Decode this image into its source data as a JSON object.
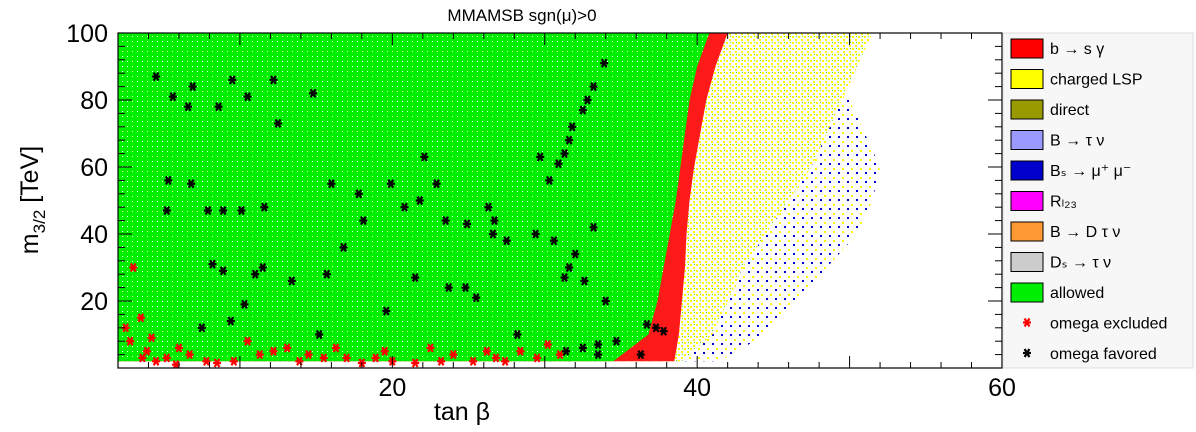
{
  "chart_data": {
    "type": "scatter",
    "title": "MMAMSB    sgn(μ)>0",
    "xlabel": "tan β",
    "ylabel_main": "m",
    "ylabel_sub": "3/2",
    "ylabel_unit": " [TeV]",
    "xlim": [
      2,
      60
    ],
    "ylim": [
      0,
      100
    ],
    "x_ticks": [
      20,
      40,
      60
    ],
    "y_ticks": [
      20,
      40,
      60,
      80,
      100
    ],
    "grid": false,
    "legend_position": "right",
    "legend": [
      {
        "key": "bsg",
        "label": "b → s γ",
        "color": "#ff0000",
        "marker": "box"
      },
      {
        "key": "charged",
        "label": "charged LSP",
        "color": "#ffff00",
        "marker": "box"
      },
      {
        "key": "direct",
        "label": "direct",
        "color": "#999900",
        "marker": "box"
      },
      {
        "key": "btn",
        "label": "B → τ ν",
        "color": "#9999ff",
        "marker": "box"
      },
      {
        "key": "bsmm",
        "label": "Bₛ → μ⁺ μ⁻",
        "color": "#0000cc",
        "marker": "box"
      },
      {
        "key": "rl23",
        "label": "Rₗ₂₃",
        "color": "#ff00ff",
        "marker": "box"
      },
      {
        "key": "bdtn",
        "label": "B → D τ ν",
        "color": "#ff9933",
        "marker": "box"
      },
      {
        "key": "dstn",
        "label": "Dₛ → τ ν",
        "color": "#cccccc",
        "marker": "box"
      },
      {
        "key": "allowed",
        "label": "allowed",
        "color": "#00ee00",
        "marker": "box"
      },
      {
        "key": "omega_ex",
        "label": "omega excluded",
        "color": "#ff0000",
        "marker": "star"
      },
      {
        "key": "omega_fav",
        "label": "omega favored",
        "color": "#000000",
        "marker": "star"
      }
    ],
    "region_boundaries": {
      "m32": [
        2,
        10,
        20,
        30,
        40,
        50,
        60,
        70,
        80,
        90,
        100
      ],
      "allowed_tanb_max": [
        34.5,
        36.8,
        37.4,
        37.8,
        38.2,
        38.6,
        38.9,
        39.2,
        39.5,
        40.0,
        40.8
      ],
      "red_band_tanb_max": [
        38.5,
        38.8,
        39.0,
        39.2,
        39.3,
        39.5,
        39.8,
        40.2,
        40.6,
        41.2,
        42.0
      ],
      "yellow_tanb_max": [
        39.0,
        41.0,
        42.0,
        43.0,
        44.5,
        46.0,
        47.5,
        48.5,
        49.5,
        50.5,
        51.5
      ],
      "blue_tanb_max": [
        41.5,
        44.5,
        46.5,
        48.5,
        50.5,
        51.5,
        52.0,
        51.0,
        50.0,
        49.0,
        48.0
      ]
    },
    "omega_favored_points": [
      [
        4.5,
        87
      ],
      [
        5.6,
        81
      ],
      [
        6.6,
        78
      ],
      [
        6.9,
        84
      ],
      [
        8.6,
        78
      ],
      [
        9.5,
        86
      ],
      [
        10.5,
        81
      ],
      [
        12.2,
        86
      ],
      [
        12.5,
        73
      ],
      [
        14.8,
        82
      ],
      [
        5.3,
        56
      ],
      [
        6.8,
        55
      ],
      [
        8.9,
        47
      ],
      [
        11.6,
        48
      ],
      [
        16.0,
        55
      ],
      [
        17.8,
        52
      ],
      [
        19.9,
        55
      ],
      [
        22.1,
        63
      ],
      [
        22.9,
        55
      ],
      [
        23.5,
        44
      ],
      [
        5.2,
        47
      ],
      [
        7.9,
        47
      ],
      [
        10.1,
        47
      ],
      [
        18.1,
        44
      ],
      [
        20.8,
        48
      ],
      [
        21.8,
        50
      ],
      [
        24.9,
        43
      ],
      [
        26.3,
        48
      ],
      [
        26.7,
        44
      ],
      [
        29.7,
        63
      ],
      [
        30.3,
        56
      ],
      [
        30.9,
        61
      ],
      [
        31.3,
        64
      ],
      [
        31.6,
        68
      ],
      [
        31.8,
        72
      ],
      [
        32.5,
        77
      ],
      [
        32.8,
        80
      ],
      [
        33.2,
        84
      ],
      [
        33.9,
        91
      ],
      [
        26.6,
        40
      ],
      [
        27.5,
        38
      ],
      [
        29.4,
        40
      ],
      [
        30.6,
        38
      ],
      [
        31.6,
        30
      ],
      [
        32.0,
        34
      ],
      [
        32.6,
        26
      ],
      [
        31.3,
        27
      ],
      [
        33.2,
        42
      ],
      [
        34.0,
        20
      ],
      [
        8.2,
        31
      ],
      [
        8.9,
        29
      ],
      [
        11.0,
        28
      ],
      [
        11.5,
        30
      ],
      [
        13.4,
        26
      ],
      [
        15.7,
        28
      ],
      [
        16.8,
        36
      ],
      [
        19.6,
        17
      ],
      [
        21.5,
        27
      ],
      [
        23.7,
        24
      ],
      [
        24.8,
        24
      ],
      [
        10.3,
        19
      ],
      [
        7.5,
        12
      ],
      [
        9.4,
        14
      ],
      [
        15.2,
        10
      ],
      [
        25.5,
        21
      ],
      [
        28.2,
        10
      ],
      [
        31.4,
        5
      ],
      [
        32.5,
        6
      ],
      [
        33.5,
        4
      ],
      [
        36.7,
        13
      ],
      [
        37.3,
        12
      ],
      [
        37.8,
        11
      ],
      [
        36.3,
        4
      ],
      [
        33.5,
        7
      ],
      [
        34.7,
        8
      ]
    ],
    "omega_excluded_points": [
      [
        2.5,
        12
      ],
      [
        2.8,
        8
      ],
      [
        3.0,
        30
      ],
      [
        3.6,
        3
      ],
      [
        3.9,
        5
      ],
      [
        4.5,
        2
      ],
      [
        5.2,
        3
      ],
      [
        5.8,
        1
      ],
      [
        6.7,
        4
      ],
      [
        7.8,
        2
      ],
      [
        8.5,
        1.5
      ],
      [
        9.6,
        2
      ],
      [
        11.3,
        4
      ],
      [
        12.2,
        5
      ],
      [
        13.1,
        6
      ],
      [
        13.9,
        2
      ],
      [
        15.5,
        3
      ],
      [
        16.3,
        6
      ],
      [
        17.0,
        3
      ],
      [
        18.0,
        1.5
      ],
      [
        18.9,
        3
      ],
      [
        20.0,
        2
      ],
      [
        21.5,
        1.5
      ],
      [
        23.2,
        2
      ],
      [
        24.0,
        4
      ],
      [
        25.3,
        2
      ],
      [
        26.2,
        5
      ],
      [
        27.4,
        2
      ],
      [
        28.4,
        5
      ],
      [
        29.5,
        3
      ],
      [
        30.2,
        7
      ],
      [
        31.0,
        4
      ],
      [
        3.5,
        15
      ],
      [
        4.2,
        9
      ],
      [
        6.0,
        6
      ],
      [
        10.5,
        8
      ],
      [
        14.5,
        4
      ],
      [
        19.5,
        5
      ],
      [
        22.5,
        6
      ],
      [
        26.8,
        3
      ]
    ]
  }
}
